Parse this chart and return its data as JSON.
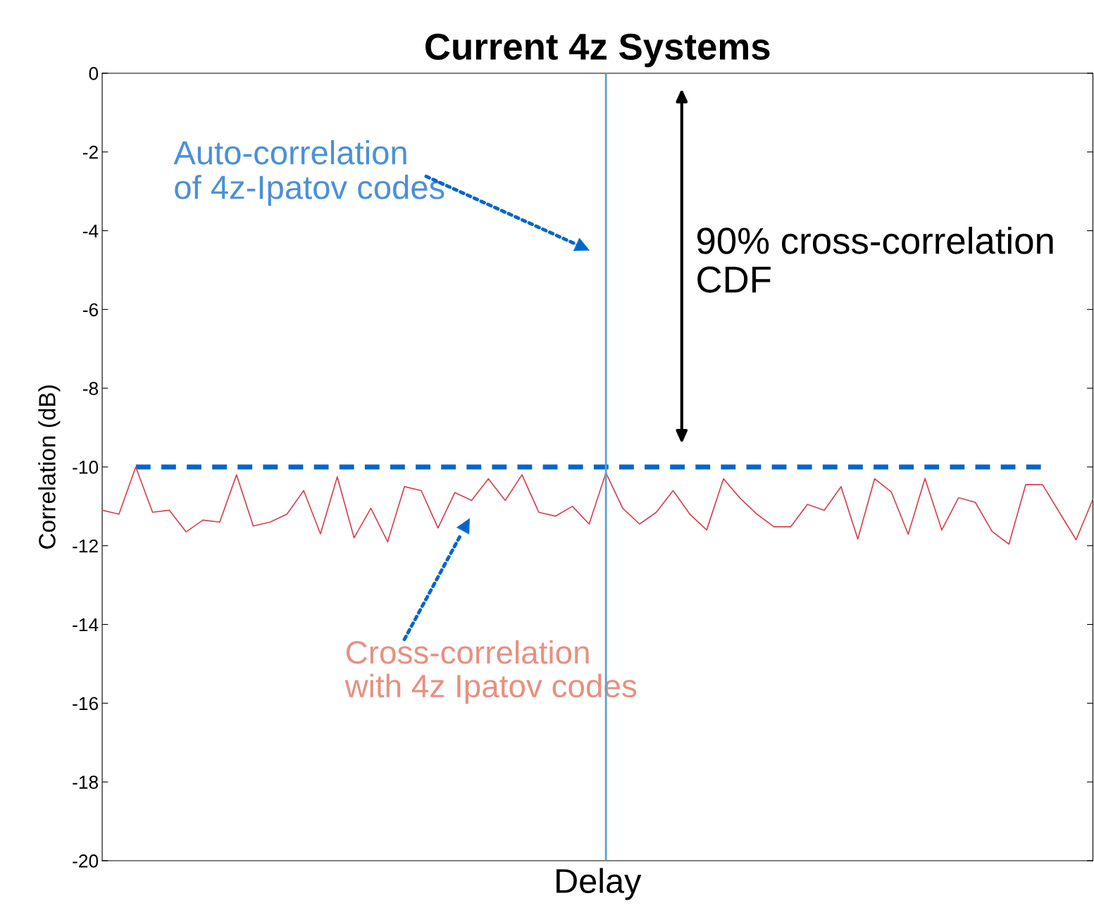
{
  "chart_data": {
    "type": "line",
    "title": "Current 4z Systems",
    "xlabel": "Delay",
    "ylabel": "Correlation (dB)",
    "categories": [
      null,
      null,
      null,
      null,
      null,
      null,
      null,
      null,
      null,
      null,
      null,
      null,
      null,
      null,
      null,
      null,
      null,
      null,
      null,
      null,
      null,
      null,
      null,
      null,
      null,
      null,
      null,
      null,
      null,
      null,
      null,
      null,
      null,
      null,
      null,
      null,
      null,
      null,
      null,
      null,
      null,
      null,
      null,
      null,
      null,
      null,
      null,
      null,
      null,
      null,
      null,
      null,
      null,
      null,
      null,
      null,
      null,
      null,
      null,
      null
    ],
    "ylim": [
      -20,
      0
    ],
    "yticks": [
      -20,
      -18,
      -16,
      -14,
      -12,
      -10,
      -8,
      -6,
      -4,
      -2,
      0
    ],
    "marker": "none",
    "series": [
      {
        "color": "#d9404f",
        "line_style": "solid",
        "values": [
          -11.1,
          -11.2,
          -10.0,
          -11.15,
          -11.1,
          -11.65,
          -11.35,
          -11.4,
          -10.2,
          -11.5,
          -11.4,
          -11.2,
          -10.6,
          -11.7,
          -10.25,
          -11.8,
          -11.05,
          -11.9,
          -10.5,
          -10.6,
          -11.55,
          -10.65,
          -10.85,
          -10.3,
          -10.85,
          -10.2,
          -11.15,
          -11.25,
          -11.0,
          -11.45,
          -10.15,
          -11.05,
          -11.45,
          -11.15,
          -10.6,
          -11.2,
          -11.6,
          -10.3,
          -10.8,
          -11.2,
          -11.52,
          -11.52,
          -10.95,
          -11.1,
          -10.5,
          -11.83,
          -10.3,
          -10.64,
          -11.71,
          -10.29,
          -11.6,
          -10.78,
          -10.9,
          -11.64,
          -11.96,
          -10.45,
          -10.45,
          -11.15,
          -11.85,
          -10.82
        ]
      },
      {
        "type": "bar",
        "color": "#5ea3cf",
        "base": [
          null,
          null,
          null,
          null,
          null,
          null,
          null,
          null,
          null,
          null,
          null,
          null,
          null,
          null,
          null,
          null,
          null,
          null,
          null,
          null,
          null,
          null,
          null,
          null,
          null,
          null,
          null,
          null,
          null,
          null,
          -20,
          null,
          null,
          null,
          null,
          null,
          null,
          null,
          null,
          null,
          null,
          null,
          null,
          null,
          null,
          null,
          null,
          null,
          null,
          null,
          null,
          null,
          null,
          null,
          null,
          null,
          null,
          null,
          null,
          null
        ],
        "values": [
          null,
          null,
          null,
          null,
          null,
          null,
          null,
          null,
          null,
          null,
          null,
          null,
          null,
          null,
          null,
          null,
          null,
          null,
          null,
          null,
          null,
          null,
          null,
          null,
          null,
          null,
          null,
          null,
          null,
          null,
          20,
          null,
          null,
          null,
          null,
          null,
          null,
          null,
          null,
          null,
          null,
          null,
          null,
          null,
          null,
          null,
          null,
          null,
          null,
          null,
          null,
          null,
          null,
          null,
          null,
          null,
          null,
          null,
          null,
          null
        ]
      }
    ],
    "ref_lines": [
      {
        "axis": "y",
        "value": -10,
        "color": "#0066cc",
        "line_style": "dashed"
      }
    ],
    "annotations": [
      "Auto-correlation\nof 4z-Ipatov codes",
      "Cross-correlation\nwith 4z Ipatov codes",
      "90% cross-correlation\nCDF"
    ]
  }
}
